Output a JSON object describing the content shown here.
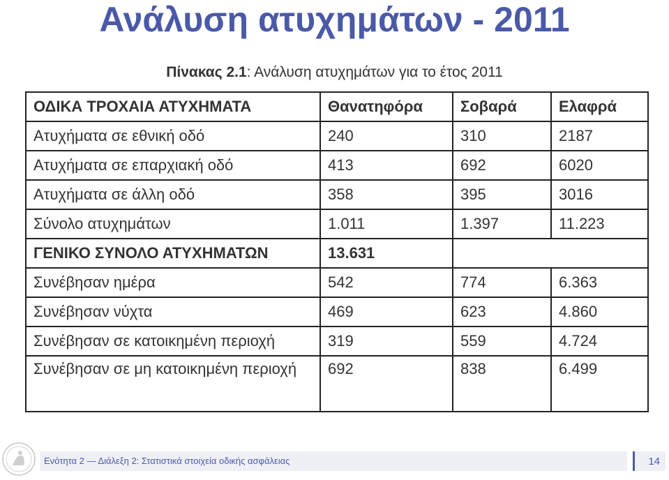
{
  "slide": {
    "title": "Ανάλυση ατυχημάτων - 2011",
    "caption_label": "Πίνακας 2.1",
    "caption_text": ": Ανάλυση ατυχημάτων για το έτος 2011"
  },
  "table": {
    "rows": [
      [
        "ΟΔΙΚΑ ΤΡΟΧΑΙΑ ΑΤΥΧΗΜΑΤΑ",
        "Θανατηφόρα",
        "Σοβαρά",
        "Ελαφρά"
      ],
      [
        "Ατυχήματα σε εθνική οδό",
        "240",
        "310",
        "2187"
      ],
      [
        "Ατυχήματα σε επαρχιακή οδό",
        "413",
        "692",
        "6020"
      ],
      [
        "Ατυχήματα σε άλλη οδό",
        "358",
        "395",
        "3016"
      ],
      [
        "Σύνολο ατυχημάτων",
        "1.011",
        "1.397",
        "11.223"
      ],
      [
        "ΓΕΝΙΚΟ ΣΥΝΟΛΟ ΑΤΥΧΗΜΑΤΩΝ",
        "13.631",
        "",
        ""
      ],
      [
        "Συνέβησαν ημέρα",
        "542",
        "774",
        "6.363"
      ],
      [
        "Συνέβησαν νύχτα",
        "469",
        "623",
        "4.860"
      ],
      [
        "Συνέβησαν σε κατοικημένη περιοχή",
        "319",
        "559",
        "4.724"
      ],
      [
        "Συνέβησαν σε μη κατοικημένη περιοχή",
        "692",
        "838",
        "6.499"
      ]
    ]
  },
  "footer": {
    "text": "Ενότητα 2 — Διάλεξη 2: Στατιστικά στοιχεία οδικής ασφάλειας",
    "page_number": "14"
  },
  "colors": {
    "title": "#4a5aa8",
    "footer_bg": "#eef0f6",
    "border": "#222222"
  }
}
